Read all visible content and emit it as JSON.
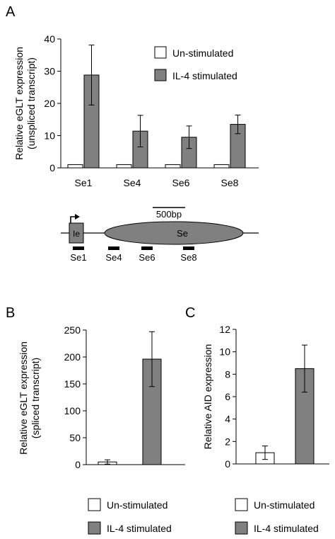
{
  "panels": {
    "a": {
      "label": "A"
    },
    "b": {
      "label": "B"
    },
    "c": {
      "label": "C"
    }
  },
  "legend": {
    "unstimulated": "Un-stimulated",
    "il4": "IL-4 stimulated",
    "unstimulated_color": "#ffffff",
    "il4_color": "#808080"
  },
  "diagram": {
    "scale_label": "500bp",
    "exon_label": "Ie",
    "switch_label": "Se",
    "probes": [
      "Se1",
      "Se4",
      "Se6",
      "Se8"
    ]
  },
  "chart_data": [
    {
      "type": "bar",
      "panel": "A",
      "categories": [
        "Se1",
        "Se4",
        "Se6",
        "Se8"
      ],
      "series": [
        {
          "name": "Un-stimulated",
          "values": [
            1,
            1,
            1,
            1
          ],
          "errors": [
            0,
            0,
            0,
            0
          ]
        },
        {
          "name": "IL-4 stimulated",
          "values": [
            28.8,
            11.4,
            9.5,
            13.5
          ],
          "errors": [
            9.3,
            4.9,
            3.5,
            2.9
          ]
        }
      ],
      "ylabel": "Relative eGLT expression",
      "ylabel2": "(unspliced transcript)",
      "ylim": [
        0,
        40
      ],
      "yticks": [
        0,
        10,
        20,
        30,
        40
      ]
    },
    {
      "type": "bar",
      "panel": "B",
      "categories": [
        "Un-stimulated",
        "IL-4 stimulated"
      ],
      "values": [
        5,
        196
      ],
      "errors": [
        4,
        51
      ],
      "ylabel": "Relative eGLT expression",
      "ylabel2": "(spliced transcript)",
      "ylim": [
        0,
        250
      ],
      "yticks": [
        0,
        50,
        100,
        150,
        200,
        250
      ]
    },
    {
      "type": "bar",
      "panel": "C",
      "categories": [
        "Un-stimulated",
        "IL-4 stimulated"
      ],
      "values": [
        1,
        8.5
      ],
      "errors": [
        0.6,
        2.1
      ],
      "ylabel": "Relative AID expression",
      "ylim": [
        0,
        12
      ],
      "yticks": [
        0,
        2,
        4,
        6,
        8,
        10,
        12
      ]
    }
  ]
}
